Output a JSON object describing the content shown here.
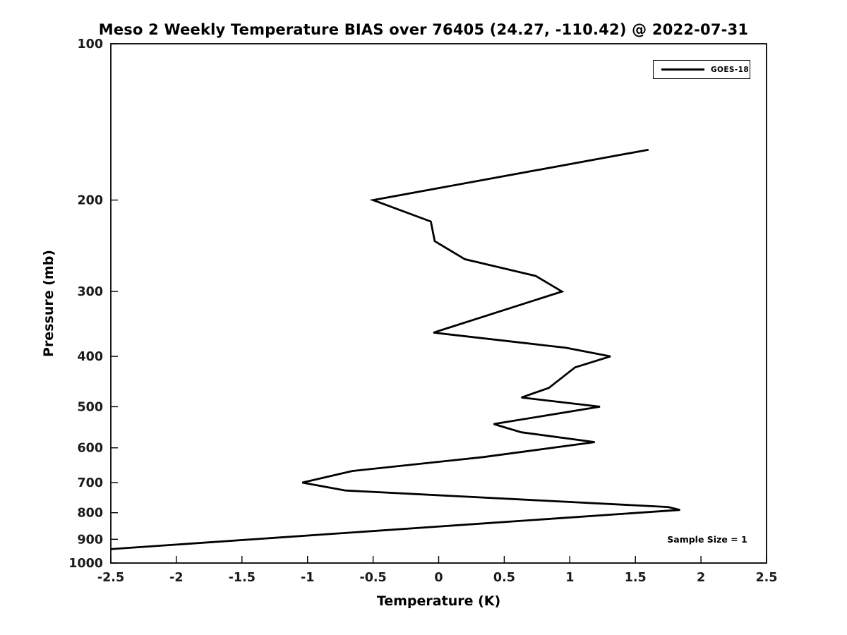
{
  "chart": {
    "title": "Meso 2 Weekly Temperature BIAS over 76405 (24.27, -110.42) @ 2022-07-31",
    "xlabel": "Temperature (K)",
    "ylabel": "Pressure (mb)",
    "annotation": "Sample Size = 1",
    "legend": {
      "position": "upper right",
      "entries": [
        {
          "label": "GOES-18",
          "color": "#000000"
        }
      ]
    }
  },
  "chart_data": {
    "type": "line",
    "title": "Meso 2 Weekly Temperature BIAS over 76405 (24.27, -110.42) @ 2022-07-31",
    "xlabel": "Temperature (K)",
    "ylabel": "Pressure (mb)",
    "x_ticks": [
      -2.5,
      -2,
      -1.5,
      -1,
      -0.5,
      0,
      0.5,
      1,
      1.5,
      2,
      2.5
    ],
    "x_tick_labels": [
      "-2.5",
      "-2",
      "-1.5",
      "-1",
      "-0.5",
      "0",
      "0.5",
      "1",
      "1.5",
      "2",
      "2.5"
    ],
    "y_ticks": [
      100,
      200,
      300,
      400,
      500,
      600,
      700,
      800,
      900,
      1000
    ],
    "xlim": [
      -2.5,
      2.5
    ],
    "ylim": [
      1000,
      100
    ],
    "y_scale": "log",
    "grid": false,
    "legend_position": "upper right",
    "annotation": "Sample Size = 1",
    "line_color": "#000000",
    "series": [
      {
        "name": "GOES-18",
        "color": "#000000",
        "pressure_mb": [
          160,
          200,
          220,
          240,
          260,
          280,
          300,
          360,
          385,
          400,
          420,
          460,
          480,
          500,
          540,
          560,
          585,
          625,
          665,
          700,
          725,
          780,
          790,
          950
        ],
        "bias_K": [
          1.6,
          -0.5,
          -0.06,
          -0.03,
          0.2,
          0.74,
          0.94,
          -0.04,
          0.97,
          1.31,
          1.04,
          0.84,
          0.63,
          1.23,
          0.42,
          0.63,
          1.19,
          0.34,
          -0.66,
          -1.04,
          -0.71,
          1.75,
          1.84,
          -2.76
        ]
      }
    ]
  }
}
